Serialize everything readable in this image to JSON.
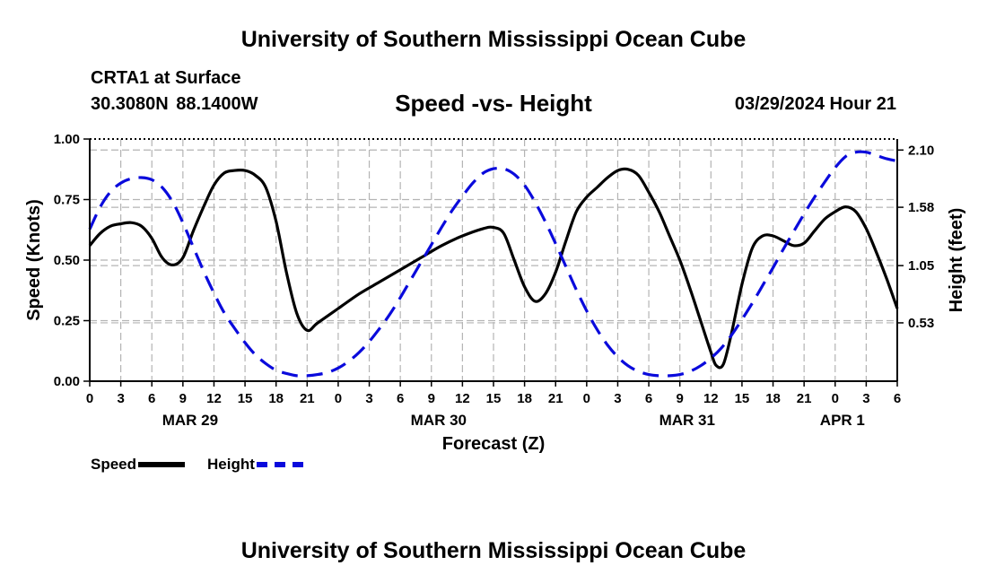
{
  "page": {
    "title_top": "University of Southern Mississippi Ocean Cube",
    "title_bottom": "University of Southern Mississippi Ocean Cube",
    "station": "CRTA1 at Surface",
    "coordinates": "30.3080N  88.1400W",
    "subtitle": "Speed -vs- Height",
    "datestamp": "03/29/2024 Hour 21"
  },
  "legend": {
    "speed_label": "Speed",
    "height_label": "Height"
  },
  "colors": {
    "speed": "#000000",
    "height": "#0a0adc",
    "grid": "#b4b4b4"
  },
  "chart_data": {
    "type": "line",
    "title": "Speed -vs- Height",
    "xlabel": "Forecast (Z)",
    "ylabel_left": "Speed (Knots)",
    "ylabel_right": "Height (feet)",
    "x_range_hours": [
      0,
      78
    ],
    "x_ticks": [
      "0",
      "3",
      "6",
      "9",
      "12",
      "15",
      "18",
      "21",
      "0",
      "3",
      "6",
      "9",
      "12",
      "15",
      "18",
      "21",
      "0",
      "3",
      "6",
      "9",
      "12",
      "15",
      "18",
      "21",
      "0",
      "3",
      "6"
    ],
    "date_labels": [
      {
        "label": "MAR 29",
        "hour": 9.7
      },
      {
        "label": "MAR 30",
        "hour": 33.7
      },
      {
        "label": "MAR 31",
        "hour": 57.7
      },
      {
        "label": "APR 1",
        "hour": 72.7
      }
    ],
    "ylim_left": [
      0,
      1
    ],
    "yticks_left": [
      "0.00",
      "0.25",
      "0.50",
      "0.75",
      "1.00"
    ],
    "ylim_right": [
      0,
      2.2
    ],
    "yticks_right": [
      {
        "label": "0.53",
        "value": 0.53
      },
      {
        "label": "1.05",
        "value": 1.05
      },
      {
        "label": "1.58",
        "value": 1.58
      },
      {
        "label": "2.10",
        "value": 2.1
      }
    ],
    "grid": true,
    "series": [
      {
        "name": "Speed",
        "axis": "left",
        "style": "solid",
        "points": [
          [
            0,
            0.56
          ],
          [
            1,
            0.61
          ],
          [
            2,
            0.64
          ],
          [
            3,
            0.65
          ],
          [
            4,
            0.655
          ],
          [
            5,
            0.64
          ],
          [
            6,
            0.59
          ],
          [
            7,
            0.51
          ],
          [
            8,
            0.48
          ],
          [
            9,
            0.51
          ],
          [
            10,
            0.62
          ],
          [
            11,
            0.72
          ],
          [
            12,
            0.81
          ],
          [
            13,
            0.86
          ],
          [
            14,
            0.87
          ],
          [
            15,
            0.87
          ],
          [
            16,
            0.85
          ],
          [
            17,
            0.8
          ],
          [
            18,
            0.66
          ],
          [
            19,
            0.45
          ],
          [
            20,
            0.28
          ],
          [
            21,
            0.21
          ],
          [
            22,
            0.24
          ],
          [
            24,
            0.3
          ],
          [
            26,
            0.36
          ],
          [
            28,
            0.41
          ],
          [
            30,
            0.46
          ],
          [
            32,
            0.51
          ],
          [
            34,
            0.56
          ],
          [
            36,
            0.6
          ],
          [
            38,
            0.63
          ],
          [
            39,
            0.635
          ],
          [
            40,
            0.61
          ],
          [
            41,
            0.5
          ],
          [
            42,
            0.39
          ],
          [
            43,
            0.33
          ],
          [
            44,
            0.36
          ],
          [
            45,
            0.45
          ],
          [
            46,
            0.58
          ],
          [
            47,
            0.7
          ],
          [
            48,
            0.76
          ],
          [
            49,
            0.8
          ],
          [
            50,
            0.84
          ],
          [
            51,
            0.87
          ],
          [
            52,
            0.875
          ],
          [
            53,
            0.85
          ],
          [
            54,
            0.78
          ],
          [
            55,
            0.7
          ],
          [
            56,
            0.6
          ],
          [
            57,
            0.5
          ],
          [
            58,
            0.38
          ],
          [
            59,
            0.25
          ],
          [
            60,
            0.12
          ],
          [
            60.5,
            0.065
          ],
          [
            61.2,
            0.07
          ],
          [
            62,
            0.2
          ],
          [
            63,
            0.4
          ],
          [
            64,
            0.55
          ],
          [
            65,
            0.6
          ],
          [
            66,
            0.6
          ],
          [
            67,
            0.58
          ],
          [
            68,
            0.56
          ],
          [
            69,
            0.57
          ],
          [
            70,
            0.62
          ],
          [
            71,
            0.67
          ],
          [
            72,
            0.7
          ],
          [
            73,
            0.72
          ],
          [
            74,
            0.7
          ],
          [
            75,
            0.63
          ],
          [
            76,
            0.53
          ],
          [
            77,
            0.42
          ],
          [
            78,
            0.3
          ]
        ]
      },
      {
        "name": "Height",
        "axis": "right",
        "style": "dashed",
        "points": [
          [
            0,
            1.38
          ],
          [
            1,
            1.58
          ],
          [
            2,
            1.72
          ],
          [
            3,
            1.8
          ],
          [
            4,
            1.84
          ],
          [
            5,
            1.85
          ],
          [
            6,
            1.83
          ],
          [
            7,
            1.76
          ],
          [
            8,
            1.63
          ],
          [
            9,
            1.44
          ],
          [
            10,
            1.22
          ],
          [
            11,
            1.0
          ],
          [
            12,
            0.8
          ],
          [
            13,
            0.62
          ],
          [
            14,
            0.48
          ],
          [
            15,
            0.35
          ],
          [
            16,
            0.24
          ],
          [
            17,
            0.16
          ],
          [
            18,
            0.1
          ],
          [
            19,
            0.07
          ],
          [
            20,
            0.05
          ],
          [
            21,
            0.05
          ],
          [
            22,
            0.06
          ],
          [
            23,
            0.08
          ],
          [
            24,
            0.12
          ],
          [
            25,
            0.18
          ],
          [
            26,
            0.26
          ],
          [
            27,
            0.36
          ],
          [
            28,
            0.48
          ],
          [
            29,
            0.61
          ],
          [
            30,
            0.76
          ],
          [
            31,
            0.92
          ],
          [
            32,
            1.08
          ],
          [
            33,
            1.24
          ],
          [
            34,
            1.4
          ],
          [
            35,
            1.55
          ],
          [
            36,
            1.68
          ],
          [
            37,
            1.8
          ],
          [
            38,
            1.89
          ],
          [
            39,
            1.93
          ],
          [
            40,
            1.93
          ],
          [
            41,
            1.88
          ],
          [
            42,
            1.78
          ],
          [
            43,
            1.63
          ],
          [
            44,
            1.45
          ],
          [
            45,
            1.25
          ],
          [
            46,
            1.04
          ],
          [
            47,
            0.83
          ],
          [
            48,
            0.64
          ],
          [
            49,
            0.47
          ],
          [
            50,
            0.33
          ],
          [
            51,
            0.22
          ],
          [
            52,
            0.14
          ],
          [
            53,
            0.09
          ],
          [
            54,
            0.06
          ],
          [
            55,
            0.05
          ],
          [
            56,
            0.05
          ],
          [
            57,
            0.06
          ],
          [
            58,
            0.09
          ],
          [
            59,
            0.14
          ],
          [
            60,
            0.21
          ],
          [
            61,
            0.3
          ],
          [
            62,
            0.42
          ],
          [
            63,
            0.56
          ],
          [
            64,
            0.71
          ],
          [
            65,
            0.87
          ],
          [
            66,
            1.03
          ],
          [
            67,
            1.2
          ],
          [
            68,
            1.36
          ],
          [
            69,
            1.52
          ],
          [
            70,
            1.67
          ],
          [
            71,
            1.81
          ],
          [
            72,
            1.94
          ],
          [
            73,
            2.04
          ],
          [
            74,
            2.08
          ],
          [
            75,
            2.08
          ],
          [
            76,
            2.05
          ],
          [
            77,
            2.02
          ],
          [
            78,
            2.0
          ]
        ]
      }
    ]
  }
}
